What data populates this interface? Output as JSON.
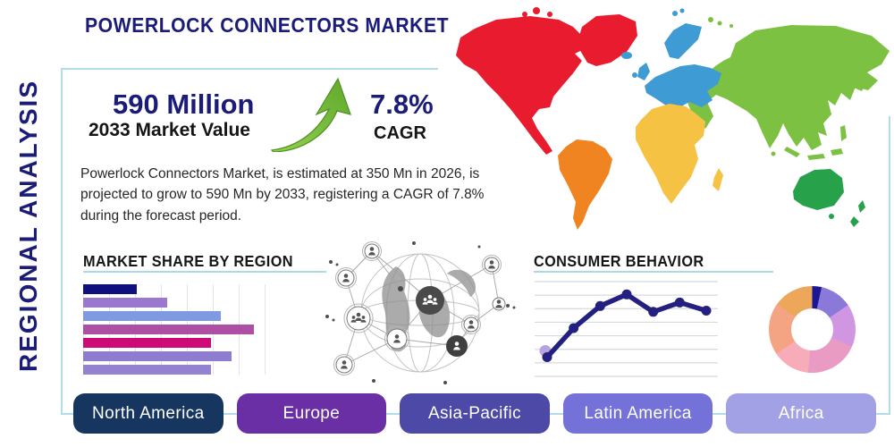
{
  "header": {
    "title": "POWERLOCK CONNECTORS MARKET",
    "side_label": "REGIONAL ANALYSIS"
  },
  "highlights": {
    "market_value": "590 Million",
    "market_value_caption": "2033 Market Value",
    "cagr": "7.8%",
    "cagr_caption": "CAGR",
    "growth_arrow_color": "#7fc13d"
  },
  "description": "Powerlock Connectors Market, is estimated at 350 Mn in 2026, is projected to grow to 590 Mn by 2033, registering a CAGR of 7.8% during the forecast period.",
  "colors": {
    "navy": "#1b1b78",
    "accent_line": "#a9d9ea",
    "text_dark": "#262626"
  },
  "map": {
    "colors": {
      "north_america": "#e81c2e",
      "south_america": "#ef8420",
      "europe": "#3e9bd3",
      "africa": "#f6c244",
      "asia": "#7cc142",
      "australia": "#28a14b"
    }
  },
  "chart_data": [
    {
      "type": "bar",
      "title": "MARKET SHARE BY REGION",
      "orientation": "horizontal",
      "axis_labels_visible": false,
      "gridlines": "vertical",
      "values_pct_of_axis": [
        26,
        41,
        67,
        83,
        62,
        72,
        62
      ],
      "bar_colors": [
        "#0f0f7e",
        "#9a78cf",
        "#7e9ae2",
        "#ae4fa6",
        "#ce0a79",
        "#8d7cd0",
        "#9481d1"
      ]
    },
    {
      "type": "line",
      "title": "CONSUMER BEHAVIOR",
      "axis_labels_visible": false,
      "gridlines": "horizontal",
      "values": [
        1.5,
        4.0,
        5.9,
        6.9,
        5.4,
        6.2,
        5.5
      ],
      "ylim": [
        0,
        8
      ],
      "line_color": "#23207f",
      "point_color": "#23207f",
      "first_point_halo_color": "#b7a4de"
    },
    {
      "type": "donut",
      "start_angle_deg": 0,
      "inner_radius_pct": 48,
      "slices": [
        {
          "pct": 3.5,
          "color": "#1c1692"
        },
        {
          "pct": 12,
          "color": "#8a79d9"
        },
        {
          "pct": 16,
          "color": "#d096e2"
        },
        {
          "pct": 20,
          "color": "#ea9bc3"
        },
        {
          "pct": 14,
          "color": "#f8acba"
        },
        {
          "pct": 19.5,
          "color": "#f5a483"
        },
        {
          "pct": 15,
          "color": "#eda75a"
        }
      ]
    }
  ],
  "region_buttons": [
    {
      "label": "North America",
      "color": "#17365f"
    },
    {
      "label": "Europe",
      "color": "#6b2fa5"
    },
    {
      "label": "Asia-Pacific",
      "color": "#4c49a7"
    },
    {
      "label": "Latin America",
      "color": "#7472d8"
    },
    {
      "label": "Africa",
      "color": "#a3a1e6"
    }
  ]
}
